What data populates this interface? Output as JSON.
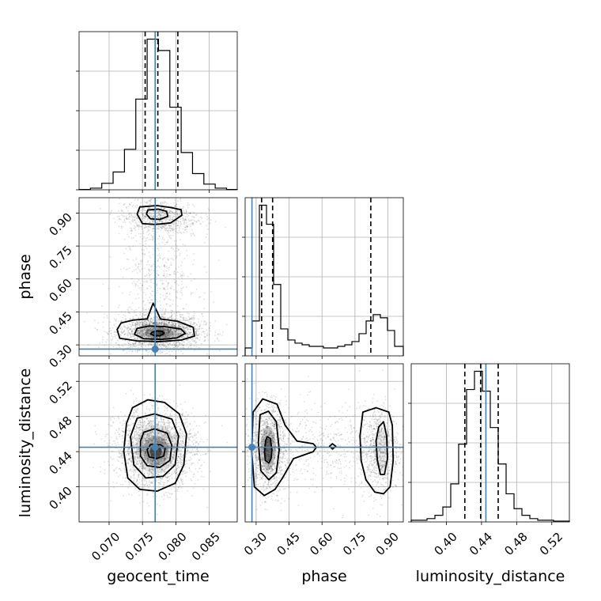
{
  "chart_data": {
    "type": "corner",
    "params": [
      {
        "name": "geocent_time",
        "label": "geocent_time",
        "range": [
          0.0655,
          0.0892
        ],
        "ticks": [
          0.07,
          0.075,
          0.08,
          0.085
        ],
        "tick_labels": [
          "0.070",
          "0.075",
          "0.080",
          "0.085"
        ]
      },
      {
        "name": "phase",
        "label": "phase",
        "range": [
          0.25,
          0.97
        ],
        "ticks": [
          0.3,
          0.45,
          0.6,
          0.75,
          0.9
        ],
        "tick_labels": [
          "0.30",
          "0.45",
          "0.60",
          "0.75",
          "0.90"
        ]
      },
      {
        "name": "luminosity_distance",
        "label": "luminosity_distance",
        "range": [
          0.36,
          0.54
        ],
        "ticks": [
          0.4,
          0.44,
          0.48,
          0.52
        ],
        "tick_labels": [
          "0.40",
          "0.44",
          "0.48",
          "0.52"
        ]
      }
    ],
    "truths": {
      "geocent_time": 0.0769,
      "phase": 0.281,
      "luminosity_distance": 0.445
    },
    "quantiles": {
      "geocent_time": [
        0.0754,
        0.0773,
        0.0803
      ],
      "phase": [
        0.325,
        0.375,
        0.822
      ],
      "luminosity_distance": [
        0.421,
        0.439,
        0.459
      ]
    },
    "histograms": {
      "geocent_time": {
        "bin_edges": [
          0.0655,
          0.0672,
          0.0689,
          0.0706,
          0.0723,
          0.074,
          0.0757,
          0.0774,
          0.0791,
          0.0808,
          0.0825,
          0.0842,
          0.0859,
          0.0876,
          0.0892
        ],
        "counts": [
          0.2,
          1.0,
          4.0,
          11.0,
          25.0,
          56.0,
          93.0,
          86.0,
          51.0,
          23.0,
          10.0,
          3.5,
          1.0,
          0.2
        ]
      },
      "phase": {
        "bin_edges": [
          0.25,
          0.2824,
          0.3148,
          0.3472,
          0.3796,
          0.412,
          0.4444,
          0.4768,
          0.5092,
          0.5416,
          0.574,
          0.6064,
          0.6388,
          0.6712,
          0.7036,
          0.736,
          0.7684,
          0.8008,
          0.8332,
          0.8656,
          0.898,
          0.9304,
          0.97
        ],
        "counts": [
          5,
          22,
          95,
          83,
          45,
          17,
          10,
          8,
          7,
          6,
          6,
          5,
          5,
          6,
          7,
          9,
          14,
          22,
          26,
          24,
          16,
          6
        ]
      },
      "luminosity_distance": {
        "bin_edges": [
          0.36,
          0.369,
          0.378,
          0.387,
          0.396,
          0.405,
          0.414,
          0.423,
          0.432,
          0.441,
          0.45,
          0.459,
          0.468,
          0.477,
          0.486,
          0.495,
          0.504,
          0.513,
          0.522,
          0.531,
          0.54
        ],
        "counts": [
          1,
          1,
          2,
          4,
          9,
          23,
          47,
          80,
          91,
          79,
          57,
          35,
          17,
          8,
          4,
          2,
          1,
          1,
          0.5,
          0.5
        ]
      }
    },
    "contours": {
      "phase__geocent_time": [
        {
          "x": [
            0.0766,
            0.0772,
            0.078,
            0.0782,
            0.0776,
            0.0768,
            0.0762,
            0.0766
          ],
          "y": [
            0.36,
            0.364,
            0.362,
            0.35,
            0.341,
            0.342,
            0.35,
            0.36
          ]
        },
        {
          "x": [
            0.0742,
            0.076,
            0.0784,
            0.0808,
            0.0814,
            0.0802,
            0.0778,
            0.0752,
            0.0738,
            0.0742
          ],
          "y": [
            0.375,
            0.386,
            0.383,
            0.372,
            0.352,
            0.332,
            0.325,
            0.328,
            0.348,
            0.375
          ]
        },
        {
          "x": [
            0.0718,
            0.0736,
            0.0757,
            0.0766,
            0.0777,
            0.0802,
            0.0826,
            0.0828,
            0.0808,
            0.0777,
            0.0742,
            0.0716,
            0.0712,
            0.0718
          ],
          "y": [
            0.4,
            0.413,
            0.418,
            0.49,
            0.418,
            0.408,
            0.38,
            0.34,
            0.322,
            0.315,
            0.318,
            0.33,
            0.37,
            0.4
          ]
        },
        {
          "x": [
            0.0746,
            0.0772,
            0.0793,
            0.0808,
            0.0809,
            0.0792,
            0.0769,
            0.075,
            0.0742,
            0.0746
          ],
          "y": [
            0.928,
            0.934,
            0.925,
            0.915,
            0.89,
            0.855,
            0.848,
            0.852,
            0.895,
            0.928
          ]
        },
        {
          "x": [
            0.0758,
            0.0774,
            0.0786,
            0.0788,
            0.0776,
            0.0762,
            0.0756,
            0.0758
          ],
          "y": [
            0.914,
            0.918,
            0.908,
            0.885,
            0.871,
            0.874,
            0.895,
            0.914
          ]
        }
      ],
      "luminosity_distance__geocent_time": [
        {
          "x": [
            0.0762,
            0.0777,
            0.0784,
            0.0782,
            0.0771,
            0.076,
            0.0757,
            0.0762
          ],
          "y": [
            0.448,
            0.448,
            0.444,
            0.435,
            0.432,
            0.434,
            0.442,
            0.448
          ]
        },
        {
          "x": [
            0.0752,
            0.0768,
            0.0787,
            0.0794,
            0.0791,
            0.0776,
            0.0757,
            0.0747,
            0.0747,
            0.0752
          ],
          "y": [
            0.462,
            0.466,
            0.461,
            0.447,
            0.43,
            0.422,
            0.424,
            0.435,
            0.452,
            0.462
          ]
        },
        {
          "x": [
            0.0742,
            0.0768,
            0.0794,
            0.0804,
            0.0799,
            0.0781,
            0.0755,
            0.0737,
            0.0732,
            0.0742
          ],
          "y": [
            0.478,
            0.483,
            0.477,
            0.458,
            0.425,
            0.412,
            0.41,
            0.425,
            0.457,
            0.478
          ]
        },
        {
          "x": [
            0.0735,
            0.0758,
            0.0783,
            0.0805,
            0.0816,
            0.0812,
            0.0799,
            0.0772,
            0.0746,
            0.0728,
            0.0722,
            0.0726,
            0.0735
          ],
          "y": [
            0.49,
            0.499,
            0.496,
            0.483,
            0.46,
            0.425,
            0.404,
            0.395,
            0.397,
            0.41,
            0.44,
            0.472,
            0.49
          ]
        }
      ],
      "luminosity_distance__phase": [
        {
          "x": [
            0.35,
            0.365,
            0.372,
            0.368,
            0.358,
            0.342,
            0.338,
            0.343,
            0.35
          ],
          "y": [
            0.457,
            0.455,
            0.442,
            0.432,
            0.427,
            0.43,
            0.44,
            0.452,
            0.457
          ]
        },
        {
          "x": [
            0.318,
            0.356,
            0.392,
            0.405,
            0.392,
            0.358,
            0.322,
            0.31,
            0.318
          ],
          "y": [
            0.482,
            0.486,
            0.474,
            0.442,
            0.416,
            0.408,
            0.418,
            0.45,
            0.482
          ]
        },
        {
          "x": [
            0.286,
            0.33,
            0.395,
            0.432,
            0.486,
            0.56,
            0.574,
            0.56,
            0.47,
            0.42,
            0.386,
            0.337,
            0.292,
            0.28,
            0.286
          ],
          "y": [
            0.485,
            0.5,
            0.494,
            0.47,
            0.452,
            0.449,
            0.445,
            0.44,
            0.432,
            0.41,
            0.397,
            0.39,
            0.4,
            0.44,
            0.485
          ]
        },
        {
          "x": [
            0.634,
            0.647,
            0.663,
            0.648,
            0.634
          ],
          "y": [
            0.446,
            0.449,
            0.446,
            0.443,
            0.446
          ]
        },
        {
          "x": [
            0.858,
            0.88,
            0.894,
            0.898,
            0.884,
            0.866,
            0.852,
            0.846,
            0.858
          ],
          "y": [
            0.468,
            0.474,
            0.458,
            0.432,
            0.414,
            0.414,
            0.43,
            0.452,
            0.468
          ]
        },
        {
          "x": [
            0.786,
            0.846,
            0.904,
            0.92,
            0.924,
            0.91,
            0.88,
            0.84,
            0.8,
            0.778,
            0.773,
            0.786
          ],
          "y": [
            0.485,
            0.49,
            0.485,
            0.47,
            0.43,
            0.4,
            0.392,
            0.394,
            0.408,
            0.43,
            0.458,
            0.485
          ]
        }
      ]
    },
    "density_cores": {
      "phase__geocent_time": [
        {
          "x": 0.0775,
          "y": 0.353,
          "sx": 0.0009,
          "sy": 0.01,
          "level": 0.9
        },
        {
          "x": 0.0775,
          "y": 0.353,
          "sx": 0.0022,
          "sy": 0.025,
          "level": 0.45
        },
        {
          "x": 0.0775,
          "y": 0.36,
          "sx": 0.0035,
          "sy": 0.04,
          "level": 0.18
        },
        {
          "x": 0.0775,
          "y": 0.89,
          "sx": 0.0024,
          "sy": 0.03,
          "level": 0.08
        }
      ],
      "luminosity_distance__geocent_time": [
        {
          "x": 0.077,
          "y": 0.44,
          "sx": 0.0009,
          "sy": 0.008,
          "level": 0.9
        },
        {
          "x": 0.077,
          "y": 0.441,
          "sx": 0.0019,
          "sy": 0.017,
          "level": 0.45
        },
        {
          "x": 0.077,
          "y": 0.443,
          "sx": 0.003,
          "sy": 0.028,
          "level": 0.18
        }
      ],
      "luminosity_distance__phase": [
        {
          "x": 0.355,
          "y": 0.442,
          "sx": 0.018,
          "sy": 0.013,
          "level": 0.8
        },
        {
          "x": 0.355,
          "y": 0.444,
          "sx": 0.035,
          "sy": 0.025,
          "level": 0.35
        },
        {
          "x": 0.87,
          "y": 0.442,
          "sx": 0.03,
          "sy": 0.025,
          "level": 0.15
        }
      ]
    },
    "scatter_clouds": {
      "phase__geocent_time": [
        {
          "x": 0.0775,
          "y": 0.36,
          "sx": 0.0032,
          "sy": 0.04,
          "n": 2000
        },
        {
          "x": 0.0775,
          "y": 0.88,
          "sx": 0.003,
          "sy": 0.045,
          "n": 700
        },
        {
          "x": 0.0775,
          "y": 0.6,
          "sx": 0.003,
          "sy": 0.14,
          "n": 500
        }
      ],
      "luminosity_distance__geocent_time": [
        {
          "x": 0.077,
          "y": 0.443,
          "sx": 0.003,
          "sy": 0.022,
          "n": 2400
        }
      ],
      "luminosity_distance__phase": [
        {
          "x": 0.355,
          "y": 0.443,
          "sx": 0.04,
          "sy": 0.025,
          "n": 1300
        },
        {
          "x": 0.86,
          "y": 0.443,
          "sx": 0.045,
          "sy": 0.025,
          "n": 800
        },
        {
          "x": 0.6,
          "y": 0.443,
          "sx": 0.15,
          "sy": 0.025,
          "n": 500
        }
      ]
    },
    "grid": true,
    "truth_color": "#4682b4",
    "line_color": "#000000"
  }
}
